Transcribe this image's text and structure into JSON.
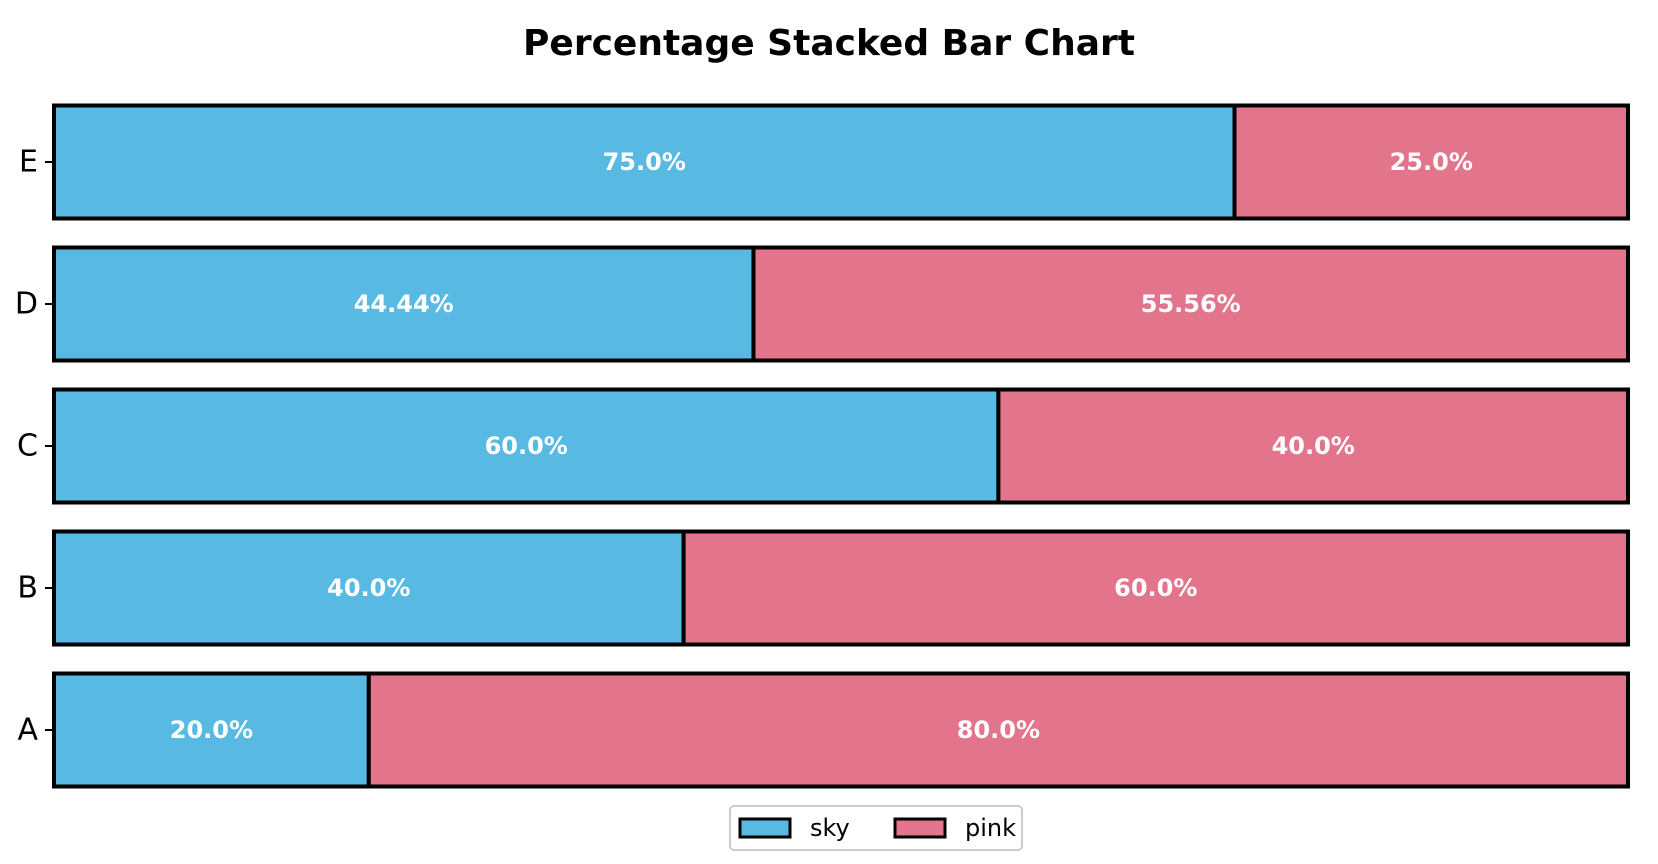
{
  "chart_data": {
    "type": "bar",
    "orientation": "horizontal",
    "stacked": true,
    "normalized_percent": true,
    "title": "Percentage Stacked Bar Chart",
    "xlabel": "",
    "ylabel": "",
    "categories": [
      "A",
      "B",
      "C",
      "D",
      "E"
    ],
    "series": [
      {
        "name": "sky",
        "color": "#58b9e3",
        "values": [
          20.0,
          40.0,
          60.0,
          44.44,
          75.0
        ],
        "labels": [
          "20.0%",
          "40.0%",
          "60.0%",
          "44.44%",
          "75.0%"
        ]
      },
      {
        "name": "pink",
        "color": "#e2748b",
        "values": [
          80.0,
          60.0,
          40.0,
          55.56,
          25.0
        ],
        "labels": [
          "80.0%",
          "60.0%",
          "40.0%",
          "55.56%",
          "25.0%"
        ]
      }
    ],
    "xlim": [
      0,
      100
    ],
    "x_axis_visible": false,
    "grid": false,
    "legend": {
      "placement": "bottom-center",
      "columns": 2
    },
    "bar_edge_color": "#000000"
  }
}
